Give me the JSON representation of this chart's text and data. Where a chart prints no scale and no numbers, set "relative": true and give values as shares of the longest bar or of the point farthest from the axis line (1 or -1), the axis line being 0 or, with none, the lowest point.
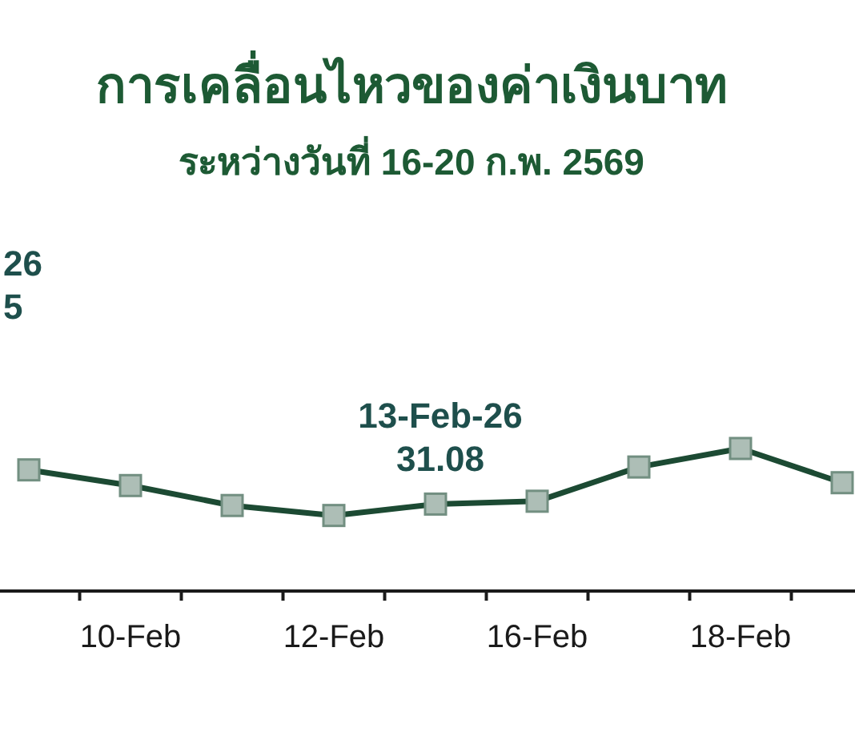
{
  "chart_data": {
    "type": "line",
    "title": "การเคลื่อนไหวของค่าเงินบาท",
    "subtitle": "ระหว่างวันที่ 16-20 ก.พ. 2569",
    "categories": [
      null,
      "10-Feb",
      null,
      "12-Feb",
      null,
      "16-Feb",
      null,
      "18-Feb",
      null
    ],
    "series": [
      {
        "color": "#1c4a33",
        "values": [
          0.85,
          0.74,
          0.6,
          0.53,
          0.61,
          0.63,
          0.87,
          1,
          0.76
        ]
      }
    ],
    "relative": true,
    "marker": "square",
    "line_style": "solid",
    "annotations": [
      "26\n5",
      "13-Feb-26\n31.08"
    ]
  }
}
